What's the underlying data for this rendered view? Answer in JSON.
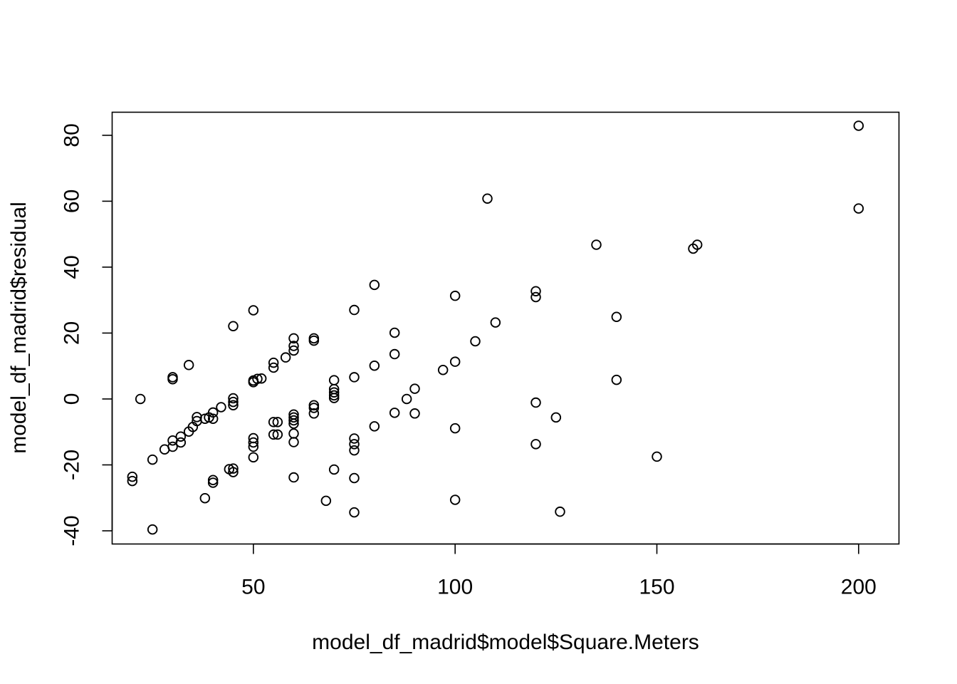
{
  "chart_data": {
    "type": "scatter",
    "title": "",
    "xlabel": "model_df_madrid$model$Square.Meters",
    "ylabel": "model_df_madrid$residual",
    "xlim": [
      15,
      210
    ],
    "ylim": [
      -44,
      87
    ],
    "xticks": [
      50,
      100,
      150,
      200
    ],
    "yticks": [
      -40,
      -20,
      0,
      20,
      40,
      60,
      80
    ],
    "grid": false,
    "legend": "none",
    "marker": "open-circle",
    "series": [
      {
        "points": [
          [
            20,
            -23.6
          ],
          [
            20,
            -24.9
          ],
          [
            22,
            0
          ],
          [
            25,
            -18.4
          ],
          [
            25,
            -39.6
          ],
          [
            28,
            -15.3
          ],
          [
            30,
            -12.6
          ],
          [
            30,
            -14.5
          ],
          [
            30,
            6
          ],
          [
            30,
            6.6
          ],
          [
            32,
            -11.4
          ],
          [
            32,
            -13.2
          ],
          [
            34,
            10.3
          ],
          [
            34,
            -9.9
          ],
          [
            35,
            -8.5
          ],
          [
            36,
            -6.7
          ],
          [
            36,
            -5.5
          ],
          [
            38,
            -30.1
          ],
          [
            38,
            -6
          ],
          [
            39,
            -5.6
          ],
          [
            40,
            -4.1
          ],
          [
            40,
            -6
          ],
          [
            40,
            -24.6
          ],
          [
            40,
            -25.4
          ],
          [
            42,
            -2.5
          ],
          [
            44,
            -21.3
          ],
          [
            45,
            -21.1
          ],
          [
            45,
            -22.2
          ],
          [
            45,
            22.1
          ],
          [
            45,
            0.2
          ],
          [
            45,
            -0.9
          ],
          [
            45,
            -1.9
          ],
          [
            50,
            26.9
          ],
          [
            50,
            5.6
          ],
          [
            50,
            5.1
          ],
          [
            50,
            -11.9
          ],
          [
            50,
            -13.2
          ],
          [
            50,
            -14.5
          ],
          [
            50,
            -17.7
          ],
          [
            51,
            6.1
          ],
          [
            52,
            6.2
          ],
          [
            55,
            11
          ],
          [
            55,
            9.5
          ],
          [
            55,
            -7
          ],
          [
            55,
            -10.8
          ],
          [
            56,
            -7
          ],
          [
            56,
            -10.8
          ],
          [
            58,
            12.6
          ],
          [
            60,
            18.4
          ],
          [
            60,
            16.1
          ],
          [
            60,
            14.7
          ],
          [
            60,
            -4.7
          ],
          [
            60,
            -5.6
          ],
          [
            60,
            -6.5
          ],
          [
            60,
            -7.5
          ],
          [
            60,
            -10.5
          ],
          [
            60,
            -13.1
          ],
          [
            60,
            -23.8
          ],
          [
            65,
            18.4
          ],
          [
            65,
            17.7
          ],
          [
            65,
            -1.9
          ],
          [
            65,
            -2.7
          ],
          [
            65,
            -4.4
          ],
          [
            68,
            -30.9
          ],
          [
            70,
            5.7
          ],
          [
            70,
            3
          ],
          [
            70,
            2
          ],
          [
            70,
            1.1
          ],
          [
            70,
            0.3
          ],
          [
            70,
            -21.4
          ],
          [
            75,
            27
          ],
          [
            75,
            6.6
          ],
          [
            75,
            -12
          ],
          [
            75,
            -13.7
          ],
          [
            75,
            -15.6
          ],
          [
            75,
            -24
          ],
          [
            75,
            -34.4
          ],
          [
            80,
            34.6
          ],
          [
            80,
            10.1
          ],
          [
            80,
            -8.3
          ],
          [
            85,
            20.1
          ],
          [
            85,
            13.6
          ],
          [
            85,
            -4.2
          ],
          [
            88,
            0
          ],
          [
            90,
            3.1
          ],
          [
            90,
            -4.4
          ],
          [
            97,
            8.8
          ],
          [
            100,
            31.3
          ],
          [
            100,
            11.3
          ],
          [
            100,
            -8.9
          ],
          [
            100,
            -30.6
          ],
          [
            105,
            17.5
          ],
          [
            108,
            60.8
          ],
          [
            110,
            23.2
          ],
          [
            120,
            32.7
          ],
          [
            120,
            30.9
          ],
          [
            120,
            -1.1
          ],
          [
            120,
            -13.7
          ],
          [
            125,
            -5.6
          ],
          [
            126,
            -34.2
          ],
          [
            135,
            46.8
          ],
          [
            140,
            24.9
          ],
          [
            140,
            5.8
          ],
          [
            150,
            -17.5
          ],
          [
            159,
            45.6
          ],
          [
            160,
            46.8
          ],
          [
            200,
            82.9
          ],
          [
            200,
            57.8
          ]
        ]
      }
    ]
  }
}
